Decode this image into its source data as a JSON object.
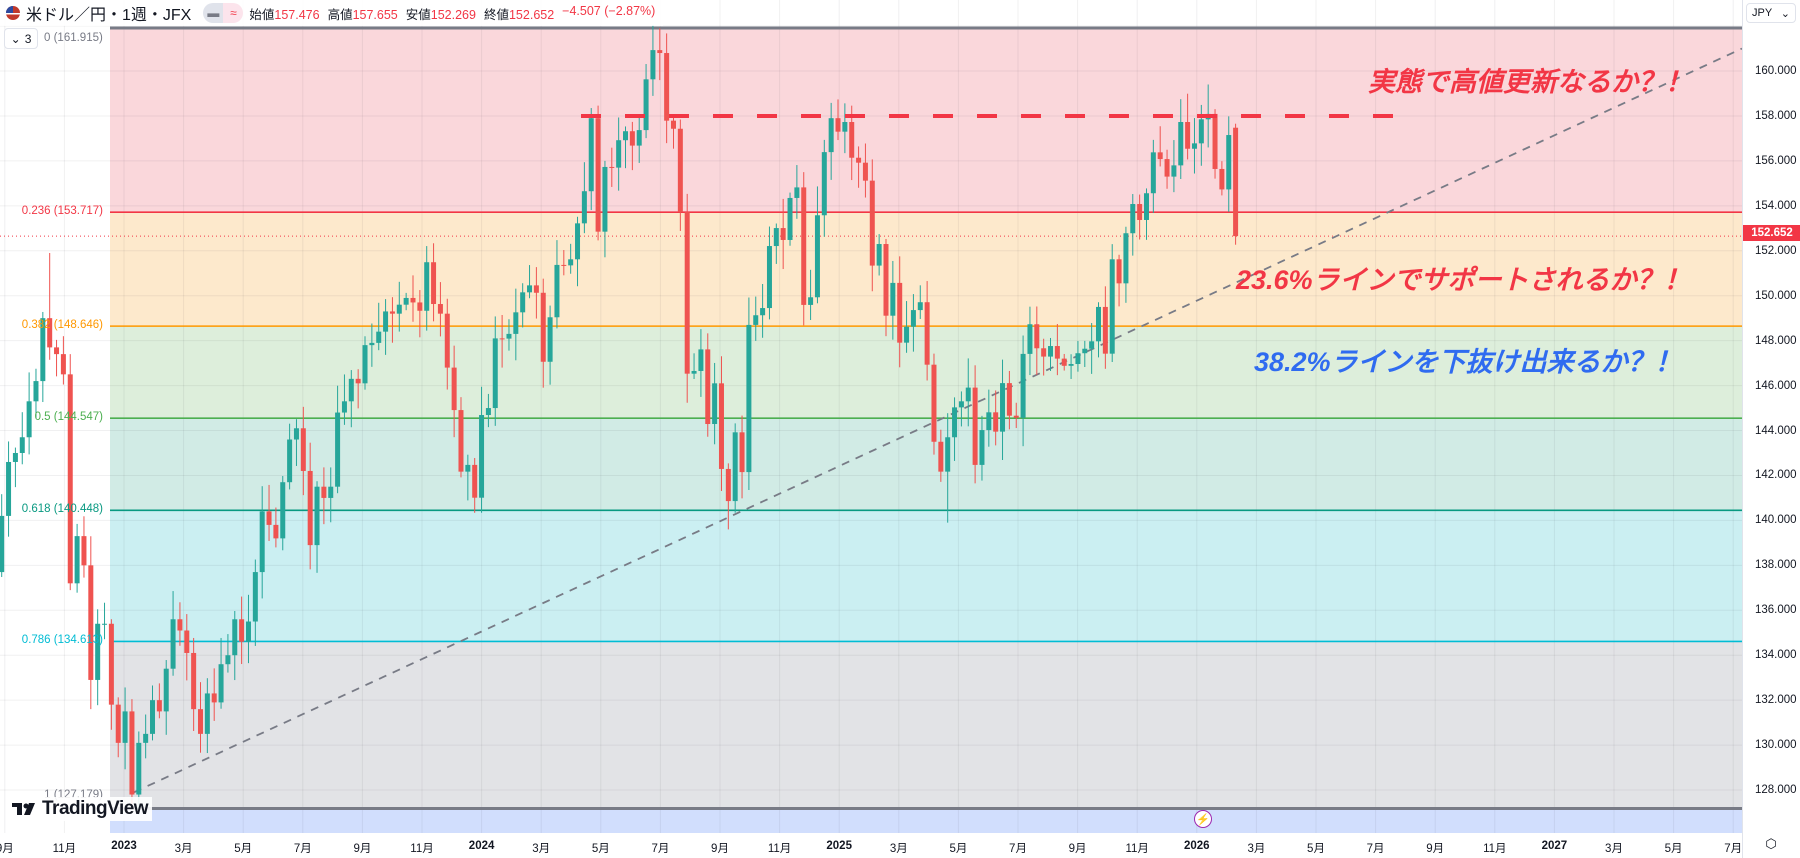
{
  "header": {
    "symbol": "米ドル／円・1週・JFX",
    "toggle_left": "▬",
    "toggle_right": "≈",
    "open_label": "始値",
    "open": "157.476",
    "high_label": "高値",
    "high": "157.655",
    "low_label": "安値",
    "low": "152.269",
    "close_label": "終値",
    "close": "152.652",
    "change": "−4.507 (−2.87%)",
    "collapse_label": "3",
    "collapse_icon": "⌄"
  },
  "price_axis": {
    "currency": "JPY",
    "current_price_label": "152.652",
    "ticks": [
      "128.000",
      "130.000",
      "132.000",
      "134.000",
      "136.000",
      "138.000",
      "140.000",
      "142.000",
      "144.000",
      "146.000",
      "148.000",
      "150.000",
      "152.000",
      "154.000",
      "156.000",
      "158.000",
      "160.000"
    ]
  },
  "annotations": {
    "top": "実態で高値更新なるか？！",
    "support": "23.6%ラインでサポートされるか？！",
    "break": "38.2%ラインを下抜け出来るか？！"
  },
  "branding": {
    "logo_text": "TradingView"
  },
  "colors": {
    "up": "#26a69a",
    "down": "#ef5350",
    "accent_red": "#f23645",
    "accent_blue": "#2962ff"
  },
  "chart_data": {
    "type": "candlestick",
    "title": "米ドル／円・1週・JFX",
    "interval": "1W",
    "first_open": 137.7,
    "closes": [
      140.2,
      142.6,
      143.0,
      143.7,
      145.3,
      146.2,
      149.0,
      147.7,
      147.4,
      146.5,
      137.2,
      139.3,
      138.0,
      132.9,
      135.4,
      135.4,
      131.8,
      130.1,
      131.5,
      127.8,
      130.1,
      130.5,
      132.0,
      131.5,
      133.4,
      135.6,
      135.1,
      134.1,
      131.6,
      130.5,
      132.3,
      131.9,
      133.6,
      134.0,
      135.6,
      134.6,
      135.5,
      137.7,
      140.4,
      139.8,
      139.2,
      141.7,
      143.6,
      144.1,
      142.2,
      138.9,
      141.5,
      141.0,
      141.5,
      144.8,
      145.3,
      146.3,
      146.1,
      147.8,
      147.9,
      148.4,
      149.3,
      149.2,
      149.6,
      149.9,
      149.7,
      149.33,
      151.49,
      149.63,
      149.2,
      146.8,
      144.91,
      142.17,
      142.47,
      141.01,
      144.69,
      145.0,
      148.1,
      148.09,
      148.3,
      149.26,
      150.15,
      150.46,
      150.13,
      147.06,
      149.04,
      151.37,
      151.35,
      151.62,
      153.22,
      154.65,
      157.9,
      152.85,
      155.73,
      155.7,
      156.92,
      157.32,
      156.68,
      157.37,
      159.63,
      160.93,
      160.8,
      157.79,
      157.43,
      153.72,
      146.53,
      146.65,
      147.61,
      144.29,
      146.1,
      142.29,
      140.86,
      143.92,
      142.15,
      148.7,
      149.13,
      149.45,
      152.21,
      153.01,
      152.48,
      154.35,
      154.82,
      149.59,
      149.93,
      153.58,
      156.39,
      157.9,
      157.3,
      157.73,
      156.14,
      155.92,
      155.12,
      151.34,
      152.3,
      149.11,
      150.57,
      147.91,
      148.62,
      149.36,
      149.71,
      146.93,
      143.5,
      142.17,
      143.7,
      145.03,
      145.3,
      145.91,
      142.47,
      144.02,
      144.81,
      143.95,
      146.11,
      144.66,
      144.57,
      147.41,
      148.73,
      147.66,
      147.29,
      147.76,
      147.2,
      146.88,
      146.96,
      147.44,
      147.64,
      147.97,
      149.5,
      147.42,
      151.62,
      150.55,
      152.78,
      154.08,
      153.37,
      154.56,
      156.38,
      156.08,
      155.3,
      155.8,
      157.73,
      156.54,
      156.78,
      157.85,
      158.09,
      155.64,
      154.73,
      157.15,
      152.652
    ],
    "last_candle": {
      "open": 157.476,
      "high": 157.655,
      "low": 152.269,
      "close": 152.652
    },
    "notable_extremes": [
      {
        "index": 7,
        "high": 151.9
      },
      {
        "index": 19,
        "low": 127.2
      },
      {
        "index": 96,
        "high": 161.9
      },
      {
        "index": 106,
        "low": 139.6
      },
      {
        "index": 138,
        "low": 139.9
      },
      {
        "index": 176,
        "high": 159.4
      }
    ],
    "ylim": [
      126.6,
      162.0
    ],
    "x_ticks": [
      {
        "label": "9月",
        "date": "2022-09"
      },
      {
        "label": "11月",
        "date": "2022-11"
      },
      {
        "label": "2023",
        "date": "2023-01",
        "year": true
      },
      {
        "label": "3月",
        "date": "2023-03"
      },
      {
        "label": "5月",
        "date": "2023-05"
      },
      {
        "label": "7月",
        "date": "2023-07"
      },
      {
        "label": "9月",
        "date": "2023-09"
      },
      {
        "label": "11月",
        "date": "2023-11"
      },
      {
        "label": "2024",
        "date": "2024-01",
        "year": true
      },
      {
        "label": "3月",
        "date": "2024-03"
      },
      {
        "label": "5月",
        "date": "2024-05"
      },
      {
        "label": "7月",
        "date": "2024-07"
      },
      {
        "label": "9月",
        "date": "2024-09"
      },
      {
        "label": "11月",
        "date": "2024-11"
      },
      {
        "label": "2025",
        "date": "2025-01",
        "year": true
      },
      {
        "label": "3月",
        "date": "2025-03"
      },
      {
        "label": "5月",
        "date": "2025-05"
      },
      {
        "label": "7月",
        "date": "2025-07"
      },
      {
        "label": "9月",
        "date": "2025-09"
      },
      {
        "label": "11月",
        "date": "2025-11"
      },
      {
        "label": "2026",
        "date": "2026-01",
        "year": true
      },
      {
        "label": "3月",
        "date": "2026-03"
      },
      {
        "label": "5月",
        "date": "2026-05"
      },
      {
        "label": "7月",
        "date": "2026-07"
      },
      {
        "label": "9月",
        "date": "2026-09"
      },
      {
        "label": "11月",
        "date": "2026-11"
      },
      {
        "label": "2027",
        "date": "2027-01",
        "year": true
      },
      {
        "label": "3月",
        "date": "2027-03"
      },
      {
        "label": "5月",
        "date": "2027-05"
      },
      {
        "label": "7月",
        "date": "2027-07"
      }
    ],
    "fibonacci": [
      {
        "level": "0",
        "price": 161.915,
        "label": "0 (161.915)",
        "color": "#787b86",
        "fill": "#fad7db"
      },
      {
        "level": "0.236",
        "price": 153.717,
        "label": "0.236 (153.717)",
        "color": "#f23645",
        "fill": "#fde9cc"
      },
      {
        "level": "0.382",
        "price": 148.646,
        "label": "0.382 (148.646)",
        "color": "#ff9800",
        "fill": "#ddeedb"
      },
      {
        "level": "0.5",
        "price": 144.547,
        "label": "0.5 (144.547)",
        "color": "#4caf50",
        "fill": "#d1ebe5"
      },
      {
        "level": "0.618",
        "price": 140.448,
        "label": "0.618 (140.448)",
        "color": "#089981",
        "fill": "#cbeff2"
      },
      {
        "level": "0.786",
        "price": 134.613,
        "label": "0.786 (134.613)",
        "color": "#00bcd4",
        "fill": "#e2e3e6"
      },
      {
        "level": "1",
        "price": 127.179,
        "label": "1 (127.179)",
        "color": "#787b86",
        "fill": "#d1defd"
      }
    ],
    "resistance_line": {
      "price": 158.0,
      "from": "2024-04",
      "to": "2026-08",
      "style": "dashed",
      "color": "#f23645"
    },
    "trend_line": {
      "start": {
        "date": "2023-01",
        "price": 127.9
      },
      "end": {
        "date": "2027-07",
        "price": 161.0
      },
      "style": "dashed",
      "color": "#787b86"
    }
  }
}
